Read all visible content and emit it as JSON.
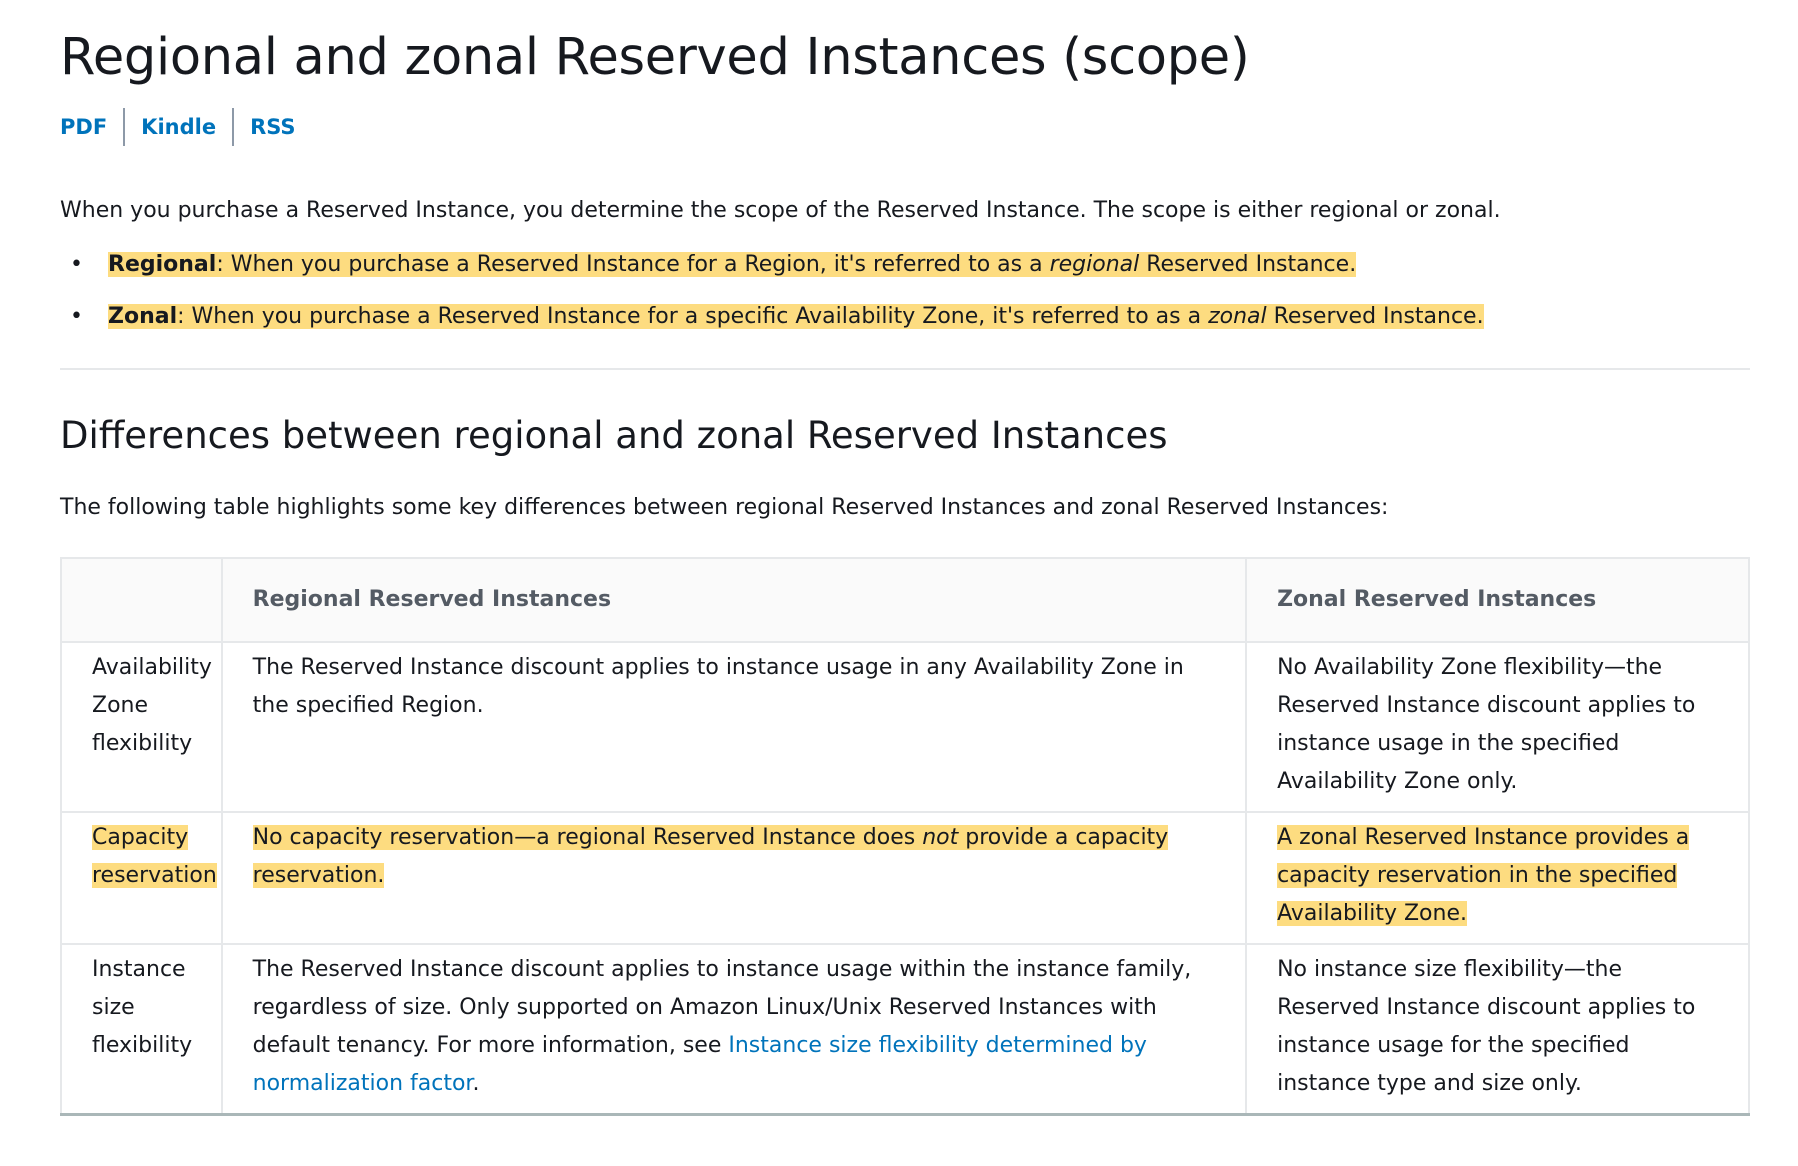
{
  "title": "Regional and zonal Reserved Instances (scope)",
  "doc_links": [
    {
      "label": "PDF"
    },
    {
      "label": "Kindle"
    },
    {
      "label": "RSS"
    }
  ],
  "intro": "When you purchase a Reserved Instance, you determine the scope of the Reserved Instance. The scope is either regional or zonal.",
  "scope_list": {
    "regional": {
      "term": "Regional",
      "before": ": When you purchase a Reserved Instance for a Region, it's referred to as a ",
      "emph": "regional",
      "after": " Reserved Instance."
    },
    "zonal": {
      "term": "Zonal",
      "before": ": When you purchase a Reserved Instance for a specific Availability Zone, it's referred to as a ",
      "emph": "zonal",
      "after": " Reserved Instance."
    }
  },
  "section": {
    "heading": "Differences between regional and zonal Reserved Instances",
    "table_intro": "The following table highlights some key differences between regional Reserved Instances and zonal Reserved Instances:"
  },
  "table": {
    "headers": {
      "feature": "",
      "regional": "Regional Reserved Instances",
      "zonal": "Zonal Reserved Instances"
    },
    "rows": [
      {
        "feature": "Availability Zone flexibility",
        "regional": "The Reserved Instance discount applies to instance usage in any Availability Zone in the specified Region.",
        "zonal": "No Availability Zone flexibility—the Reserved Instance discount applies to instance usage in the specified Availability Zone only."
      },
      {
        "feature": "Capacity reservation",
        "regional_before": "No capacity reservation—a regional Reserved Instance does ",
        "regional_emph": "not",
        "regional_after": " provide a capacity reservation.",
        "zonal": "A zonal Reserved Instance provides a capacity reservation in the specified Availability Zone."
      },
      {
        "feature": "Instance size flexibility",
        "regional_before": "The Reserved Instance discount applies to instance usage within the instance family, regardless of size. Only supported on Amazon Linux/Unix Reserved Instances with default tenancy. For more information, see ",
        "regional_link": "Instance size flexibility determined by normalization factor",
        "regional_after": ".",
        "zonal": "No instance size flexibility—the Reserved Instance discount applies to instance usage for the specified instance type and size only."
      }
    ]
  },
  "colors": {
    "highlight": "#fddc80",
    "link": "#0073bb",
    "text": "#16191f",
    "header_text": "#545b64"
  }
}
